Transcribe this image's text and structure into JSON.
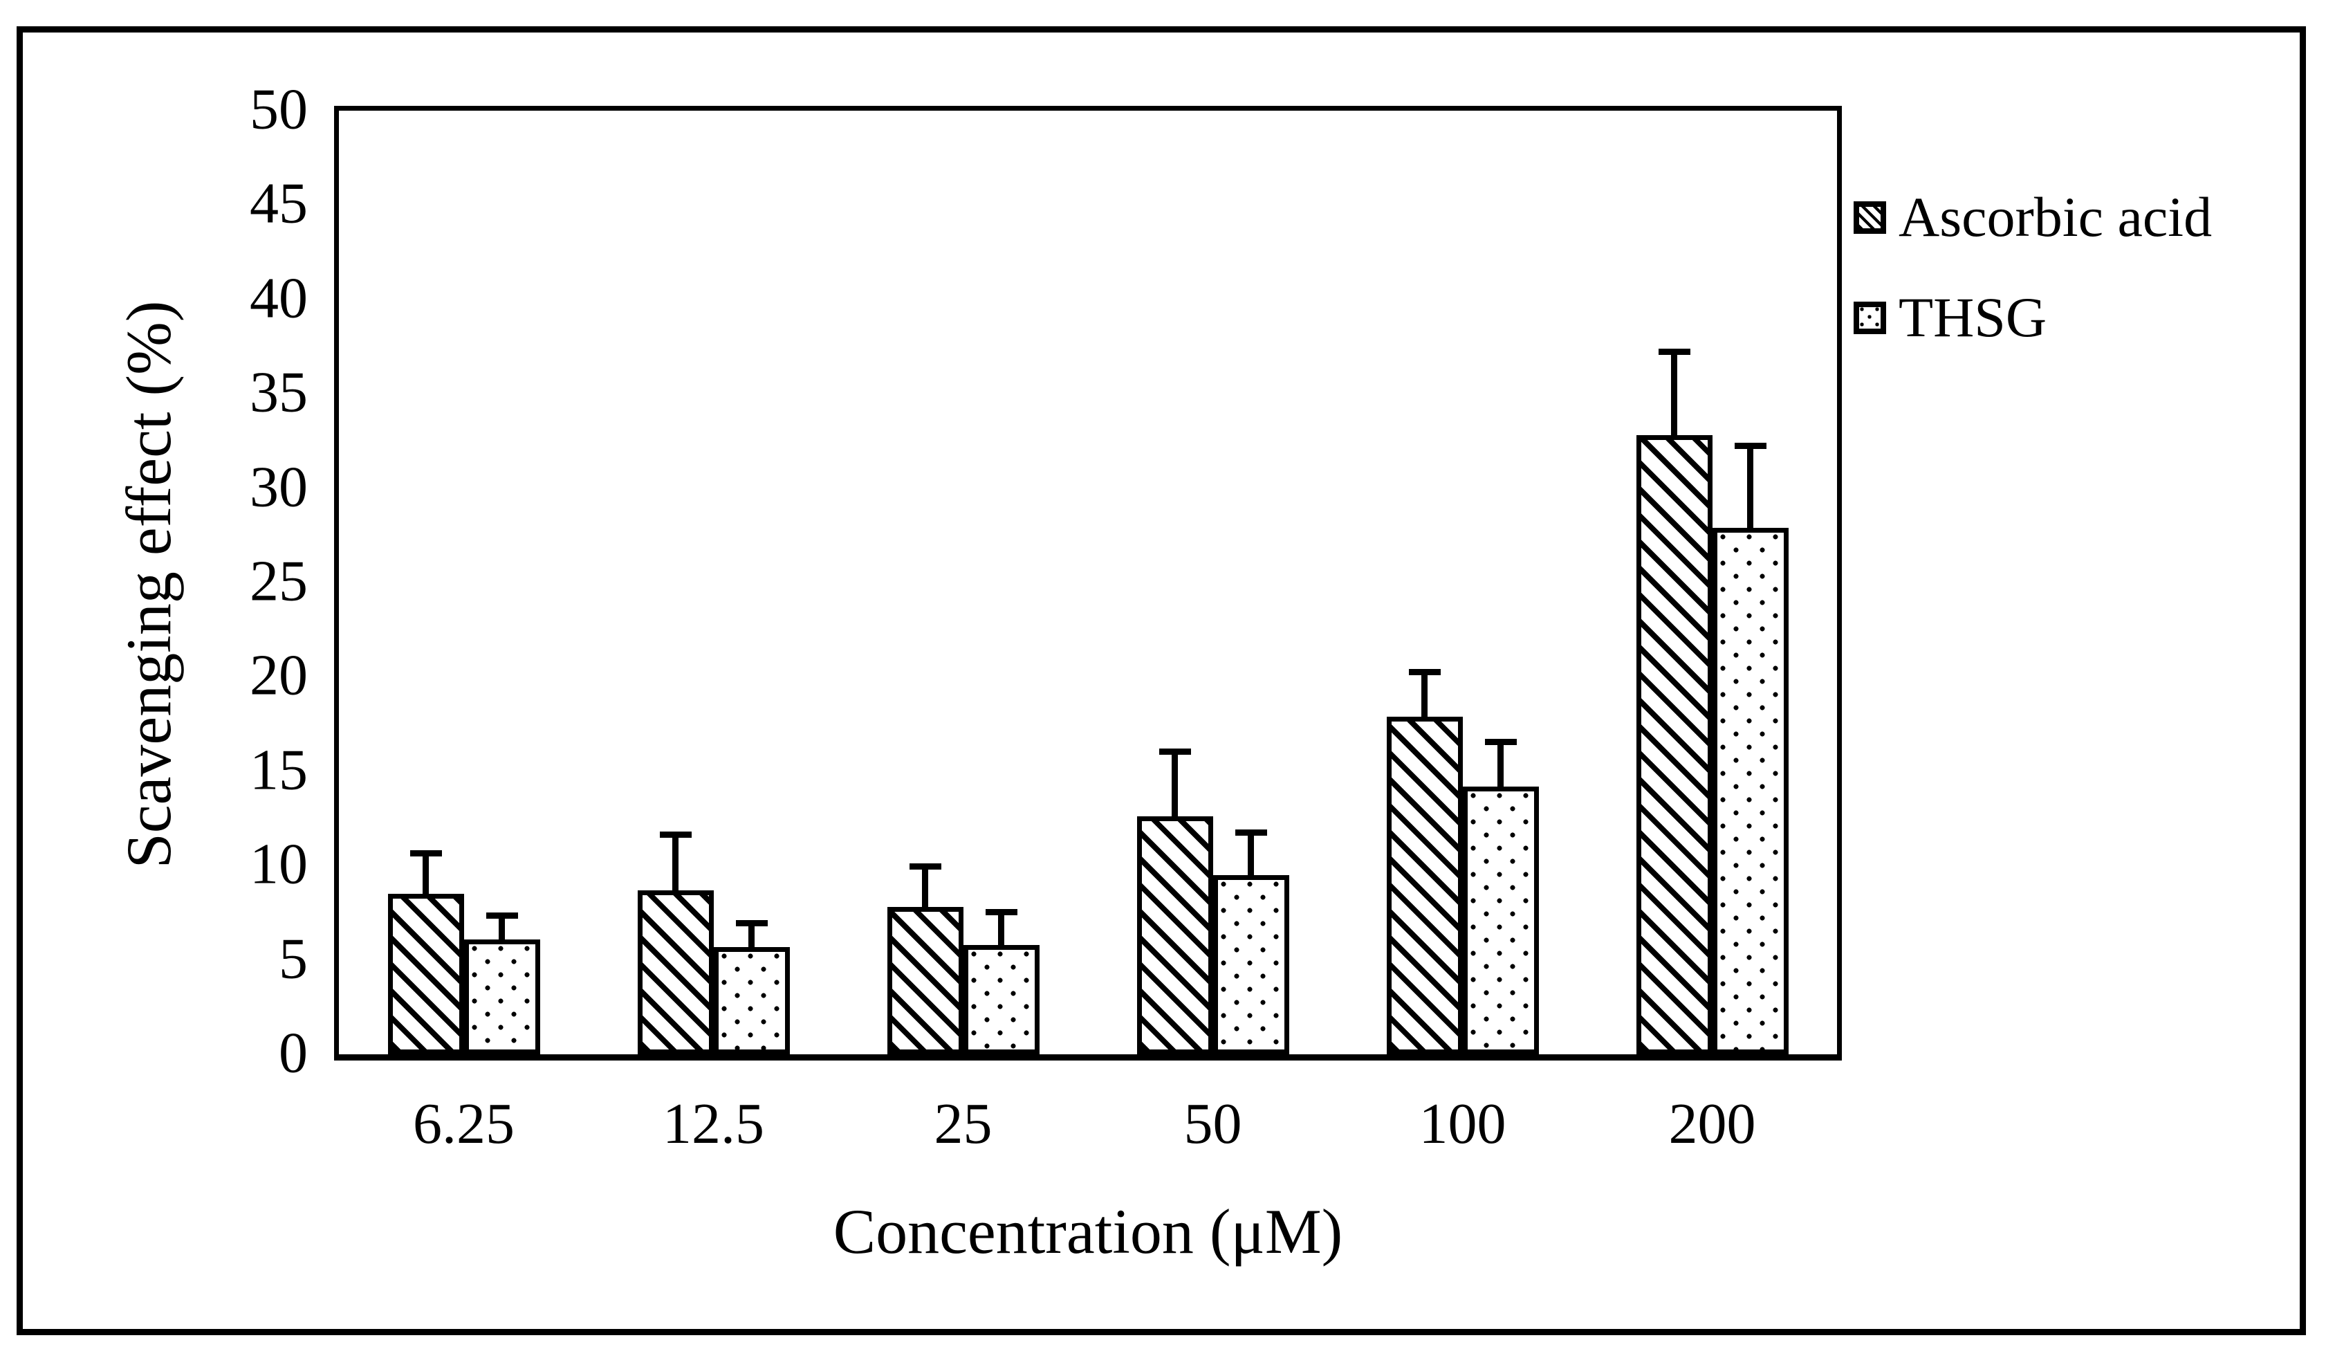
{
  "figure": {
    "background_color": "#ffffff",
    "border_color": "#000000"
  },
  "chart_data": {
    "type": "bar",
    "title": "",
    "xlabel": "Concentration (μM)",
    "ylabel": "Scavenging effect (%)",
    "ylim": [
      0,
      50
    ],
    "yticks": [
      0,
      5,
      10,
      15,
      20,
      25,
      30,
      35,
      40,
      45,
      50
    ],
    "grid": false,
    "legend_position": "right-top",
    "categories": [
      "6.25",
      "12.5",
      "25",
      "50",
      "100",
      "200"
    ],
    "series": [
      {
        "name": "Ascorbic acid",
        "pattern": "diagonal-hatch",
        "values": [
          8.5,
          8.7,
          7.8,
          12.6,
          17.9,
          32.8
        ],
        "errors_plus": [
          2.3,
          3.1,
          2.3,
          3.6,
          2.5,
          4.6
        ]
      },
      {
        "name": "THSG",
        "pattern": "dots",
        "values": [
          6.1,
          5.7,
          5.8,
          9.5,
          14.2,
          27.9
        ],
        "errors_plus": [
          1.4,
          1.4,
          1.9,
          2.4,
          2.5,
          4.5
        ]
      }
    ],
    "bar_fill_color": "#ffffff",
    "bar_border_color": "#000000",
    "error_bar_color": "#000000"
  }
}
